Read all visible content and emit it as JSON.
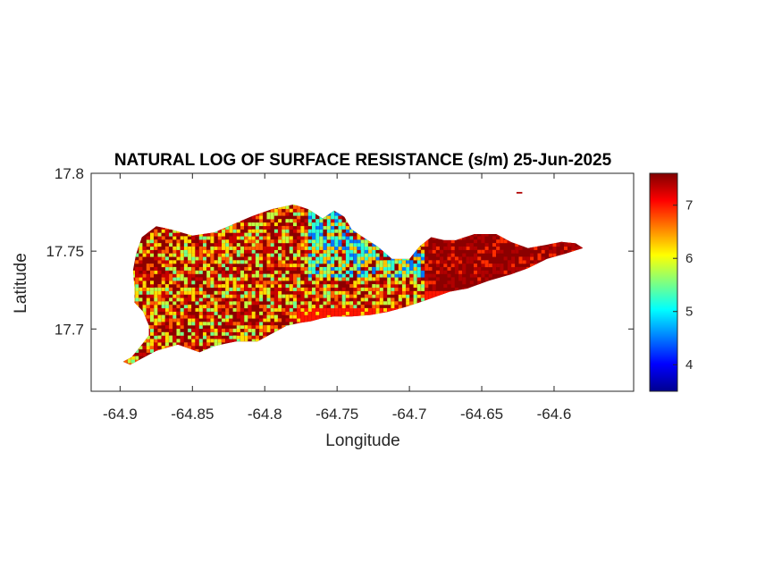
{
  "figure": {
    "title": "NATURAL LOG OF SURFACE RESISTANCE (s/m) 25-Jun-2025",
    "xlabel": "Longitude",
    "ylabel": "Latitude"
  },
  "chart_data": {
    "type": "heatmap",
    "title": "NATURAL LOG OF SURFACE RESISTANCE (s/m) 25-Jun-2025",
    "xlabel": "Longitude",
    "ylabel": "Latitude",
    "xlim": [
      -64.92,
      -64.545
    ],
    "ylim": [
      17.66,
      17.8
    ],
    "x_ticks": [
      -64.9,
      -64.85,
      -64.8,
      -64.75,
      -64.7,
      -64.65,
      -64.6
    ],
    "x_tick_labels": [
      "-64.9",
      "-64.85",
      "-64.8",
      "-64.75",
      "-64.7",
      "-64.65",
      "-64.6"
    ],
    "y_ticks": [
      17.7,
      17.75,
      17.8
    ],
    "y_tick_labels": [
      "17.7",
      "17.75",
      "17.8"
    ],
    "colorbar": {
      "colormap": "jet",
      "range": [
        3.5,
        7.6
      ],
      "ticks": [
        4,
        5,
        6,
        7
      ],
      "tick_labels": [
        "4",
        "5",
        "6",
        "7"
      ]
    },
    "grid": false,
    "region_outline_lonlat": [
      [
        -64.898,
        17.679
      ],
      [
        -64.892,
        17.682
      ],
      [
        -64.885,
        17.69
      ],
      [
        -64.88,
        17.696
      ],
      [
        -64.88,
        17.702
      ],
      [
        -64.884,
        17.711
      ],
      [
        -64.89,
        17.717
      ],
      [
        -64.89,
        17.726
      ],
      [
        -64.891,
        17.738
      ],
      [
        -64.889,
        17.748
      ],
      [
        -64.885,
        17.759
      ],
      [
        -64.875,
        17.766
      ],
      [
        -64.865,
        17.764
      ],
      [
        -64.85,
        17.76
      ],
      [
        -64.835,
        17.762
      ],
      [
        -64.82,
        17.768
      ],
      [
        -64.81,
        17.772
      ],
      [
        -64.795,
        17.777
      ],
      [
        -64.78,
        17.78
      ],
      [
        -64.77,
        17.777
      ],
      [
        -64.76,
        17.771
      ],
      [
        -64.752,
        17.776
      ],
      [
        -64.745,
        17.772
      ],
      [
        -64.74,
        17.764
      ],
      [
        -64.732,
        17.759
      ],
      [
        -64.722,
        17.753
      ],
      [
        -64.712,
        17.745
      ],
      [
        -64.7,
        17.745
      ],
      [
        -64.693,
        17.753
      ],
      [
        -64.685,
        17.759
      ],
      [
        -64.676,
        17.757
      ],
      [
        -64.668,
        17.757
      ],
      [
        -64.655,
        17.761
      ],
      [
        -64.64,
        17.761
      ],
      [
        -64.63,
        17.756
      ],
      [
        -64.618,
        17.752
      ],
      [
        -64.606,
        17.754
      ],
      [
        -64.595,
        17.756
      ],
      [
        -64.585,
        17.755
      ],
      [
        -64.58,
        17.752
      ],
      [
        -64.59,
        17.749
      ],
      [
        -64.605,
        17.745
      ],
      [
        -64.618,
        17.739
      ],
      [
        -64.63,
        17.735
      ],
      [
        -64.645,
        17.731
      ],
      [
        -64.66,
        17.726
      ],
      [
        -64.672,
        17.724
      ],
      [
        -64.69,
        17.718
      ],
      [
        -64.703,
        17.714
      ],
      [
        -64.715,
        17.711
      ],
      [
        -64.727,
        17.709
      ],
      [
        -64.74,
        17.708
      ],
      [
        -64.752,
        17.708
      ],
      [
        -64.76,
        17.707
      ],
      [
        -64.768,
        17.705
      ],
      [
        -64.775,
        17.704
      ],
      [
        -64.785,
        17.702
      ],
      [
        -64.795,
        17.697
      ],
      [
        -64.805,
        17.692
      ],
      [
        -64.82,
        17.692
      ],
      [
        -64.835,
        17.689
      ],
      [
        -64.845,
        17.685
      ],
      [
        -64.86,
        17.69
      ],
      [
        -64.875,
        17.686
      ],
      [
        -64.885,
        17.681
      ],
      [
        -64.893,
        17.677
      ],
      [
        -64.898,
        17.679
      ]
    ],
    "islet_outline_lonlat": [
      [
        -64.626,
        17.788
      ],
      [
        -64.622,
        17.788
      ],
      [
        -64.622,
        17.787
      ],
      [
        -64.626,
        17.787
      ]
    ],
    "field_description_values": {
      "dominant_value": 7.3,
      "west_and_central_mix_range": [
        5.5,
        7.5
      ],
      "north_central_low_min": 4.5,
      "south_central_coast_value": 7.0,
      "east_end_value": 7.4
    }
  }
}
